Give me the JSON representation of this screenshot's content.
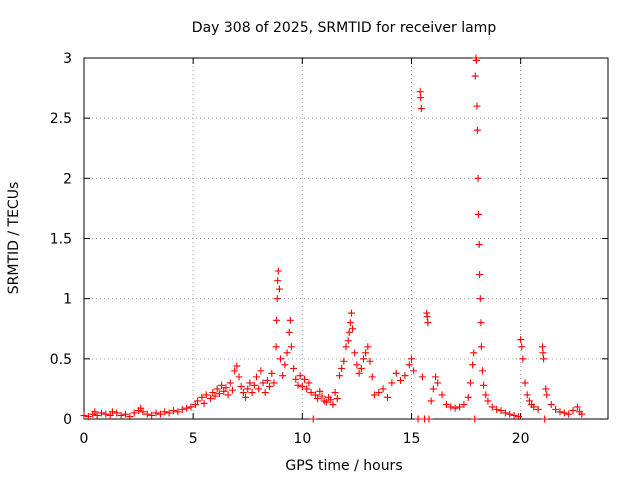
{
  "chart_data": {
    "type": "scatter",
    "title": "Day 308 of 2025, SRMTID for receiver lamp",
    "xlabel": "GPS time / hours",
    "ylabel": "SRMTID / TECUs",
    "xlim": [
      0,
      24
    ],
    "ylim": [
      0,
      3
    ],
    "xticks": [
      0,
      5,
      10,
      15,
      20
    ],
    "xtick_labels": [
      "0",
      "5",
      "10",
      "15",
      "20"
    ],
    "yticks": [
      0,
      0.5,
      1,
      1.5,
      2,
      2.5,
      3
    ],
    "ytick_labels": [
      "0",
      "0.5",
      "1",
      "1.5",
      "2",
      "2.5",
      "3"
    ],
    "grid": true,
    "marker": "plus",
    "color": "#ff0000",
    "series": [
      {
        "name": "SRMTID",
        "points": [
          [
            0.0,
            0.03
          ],
          [
            0.2,
            0.02
          ],
          [
            0.4,
            0.04
          ],
          [
            0.5,
            0.06
          ],
          [
            0.6,
            0.03
          ],
          [
            0.8,
            0.05
          ],
          [
            1.0,
            0.04
          ],
          [
            1.2,
            0.03
          ],
          [
            1.3,
            0.06
          ],
          [
            1.5,
            0.05
          ],
          [
            1.7,
            0.03
          ],
          [
            1.9,
            0.04
          ],
          [
            2.1,
            0.02
          ],
          [
            2.3,
            0.05
          ],
          [
            2.5,
            0.07
          ],
          [
            2.6,
            0.09
          ],
          [
            2.7,
            0.06
          ],
          [
            2.9,
            0.04
          ],
          [
            3.1,
            0.03
          ],
          [
            3.3,
            0.05
          ],
          [
            3.5,
            0.04
          ],
          [
            3.7,
            0.06
          ],
          [
            3.9,
            0.05
          ],
          [
            4.1,
            0.07
          ],
          [
            4.3,
            0.06
          ],
          [
            4.5,
            0.08
          ],
          [
            4.7,
            0.09
          ],
          [
            4.9,
            0.1
          ],
          [
            5.1,
            0.12
          ],
          [
            5.2,
            0.15
          ],
          [
            5.4,
            0.18
          ],
          [
            5.5,
            0.13
          ],
          [
            5.6,
            0.2
          ],
          [
            5.8,
            0.17
          ],
          [
            5.9,
            0.22
          ],
          [
            6.0,
            0.19
          ],
          [
            6.1,
            0.25
          ],
          [
            6.2,
            0.21
          ],
          [
            6.3,
            0.28
          ],
          [
            6.4,
            0.23
          ],
          [
            6.5,
            0.26
          ],
          [
            6.6,
            0.2
          ],
          [
            6.7,
            0.3
          ],
          [
            6.8,
            0.24
          ],
          [
            6.9,
            0.4
          ],
          [
            7.0,
            0.44
          ],
          [
            7.1,
            0.35
          ],
          [
            7.2,
            0.27
          ],
          [
            7.3,
            0.22
          ],
          [
            7.4,
            0.18
          ],
          [
            7.5,
            0.25
          ],
          [
            7.6,
            0.3
          ],
          [
            7.7,
            0.22
          ],
          [
            7.8,
            0.28
          ],
          [
            7.9,
            0.35
          ],
          [
            8.0,
            0.25
          ],
          [
            8.1,
            0.4
          ],
          [
            8.2,
            0.3
          ],
          [
            8.3,
            0.22
          ],
          [
            8.4,
            0.32
          ],
          [
            8.5,
            0.27
          ],
          [
            8.6,
            0.38
          ],
          [
            8.7,
            0.3
          ],
          [
            8.8,
            0.6
          ],
          [
            8.82,
            0.82
          ],
          [
            8.85,
            1.0
          ],
          [
            8.87,
            1.15
          ],
          [
            8.9,
            1.23
          ],
          [
            8.95,
            1.08
          ],
          [
            9.0,
            0.5
          ],
          [
            9.1,
            0.36
          ],
          [
            9.2,
            0.45
          ],
          [
            9.3,
            0.55
          ],
          [
            9.4,
            0.72
          ],
          [
            9.45,
            0.82
          ],
          [
            9.5,
            0.6
          ],
          [
            9.6,
            0.42
          ],
          [
            9.7,
            0.33
          ],
          [
            9.8,
            0.28
          ],
          [
            9.9,
            0.36
          ],
          [
            10.0,
            0.27
          ],
          [
            10.1,
            0.33
          ],
          [
            10.2,
            0.25
          ],
          [
            10.3,
            0.3
          ],
          [
            10.4,
            0.22
          ],
          [
            10.5,
            0.0
          ],
          [
            10.6,
            0.2
          ],
          [
            10.7,
            0.17
          ],
          [
            10.8,
            0.23
          ],
          [
            10.9,
            0.19
          ],
          [
            11.0,
            0.15
          ],
          [
            11.1,
            0.14
          ],
          [
            11.2,
            0.18
          ],
          [
            11.3,
            0.16
          ],
          [
            11.4,
            0.12
          ],
          [
            11.5,
            0.22
          ],
          [
            11.6,
            0.17
          ],
          [
            11.7,
            0.36
          ],
          [
            11.8,
            0.42
          ],
          [
            11.9,
            0.48
          ],
          [
            12.0,
            0.6
          ],
          [
            12.1,
            0.65
          ],
          [
            12.15,
            0.72
          ],
          [
            12.2,
            0.8
          ],
          [
            12.25,
            0.88
          ],
          [
            12.3,
            0.75
          ],
          [
            12.4,
            0.55
          ],
          [
            12.5,
            0.45
          ],
          [
            12.6,
            0.38
          ],
          [
            12.7,
            0.42
          ],
          [
            12.8,
            0.5
          ],
          [
            12.9,
            0.55
          ],
          [
            13.0,
            0.6
          ],
          [
            13.1,
            0.48
          ],
          [
            13.2,
            0.35
          ],
          [
            13.3,
            0.2
          ],
          [
            13.5,
            0.22
          ],
          [
            13.7,
            0.25
          ],
          [
            13.9,
            0.18
          ],
          [
            14.1,
            0.3
          ],
          [
            14.3,
            0.38
          ],
          [
            14.5,
            0.32
          ],
          [
            14.7,
            0.36
          ],
          [
            14.9,
            0.45
          ],
          [
            15.0,
            0.5
          ],
          [
            15.1,
            0.4
          ],
          [
            15.3,
            0.0
          ],
          [
            15.4,
            2.72
          ],
          [
            15.42,
            2.67
          ],
          [
            15.45,
            2.58
          ],
          [
            15.5,
            0.35
          ],
          [
            15.6,
            0.0
          ],
          [
            15.7,
            0.88
          ],
          [
            15.72,
            0.85
          ],
          [
            15.75,
            0.8
          ],
          [
            15.8,
            0.0
          ],
          [
            15.9,
            0.15
          ],
          [
            16.0,
            0.25
          ],
          [
            16.1,
            0.35
          ],
          [
            16.2,
            0.3
          ],
          [
            16.4,
            0.2
          ],
          [
            16.6,
            0.12
          ],
          [
            16.8,
            0.1
          ],
          [
            17.0,
            0.09
          ],
          [
            17.2,
            0.1
          ],
          [
            17.4,
            0.12
          ],
          [
            17.6,
            0.18
          ],
          [
            17.7,
            0.3
          ],
          [
            17.8,
            0.45
          ],
          [
            17.85,
            0.55
          ],
          [
            17.9,
            0.0
          ],
          [
            17.92,
            2.85
          ],
          [
            17.95,
            3.0
          ],
          [
            17.97,
            2.98
          ],
          [
            18.0,
            2.6
          ],
          [
            18.02,
            2.4
          ],
          [
            18.05,
            2.0
          ],
          [
            18.07,
            1.7
          ],
          [
            18.1,
            1.45
          ],
          [
            18.12,
            1.2
          ],
          [
            18.15,
            1.0
          ],
          [
            18.18,
            0.8
          ],
          [
            18.2,
            0.6
          ],
          [
            18.25,
            0.4
          ],
          [
            18.3,
            0.28
          ],
          [
            18.4,
            0.2
          ],
          [
            18.5,
            0.15
          ],
          [
            18.7,
            0.1
          ],
          [
            18.9,
            0.08
          ],
          [
            19.1,
            0.07
          ],
          [
            19.3,
            0.05
          ],
          [
            19.5,
            0.04
          ],
          [
            19.7,
            0.03
          ],
          [
            19.9,
            0.02
          ],
          [
            20.0,
            0.66
          ],
          [
            20.05,
            0.6
          ],
          [
            20.1,
            0.5
          ],
          [
            20.2,
            0.3
          ],
          [
            20.3,
            0.2
          ],
          [
            20.4,
            0.15
          ],
          [
            20.5,
            0.12
          ],
          [
            20.6,
            0.1
          ],
          [
            20.8,
            0.08
          ],
          [
            21.0,
            0.6
          ],
          [
            21.02,
            0.55
          ],
          [
            21.05,
            0.5
          ],
          [
            21.1,
            0.0
          ],
          [
            21.15,
            0.25
          ],
          [
            21.2,
            0.2
          ],
          [
            21.4,
            0.12
          ],
          [
            21.6,
            0.08
          ],
          [
            21.8,
            0.06
          ],
          [
            22.0,
            0.05
          ],
          [
            22.2,
            0.04
          ],
          [
            22.4,
            0.07
          ],
          [
            22.6,
            0.1
          ],
          [
            22.7,
            0.06
          ],
          [
            22.8,
            0.04
          ]
        ]
      }
    ]
  }
}
